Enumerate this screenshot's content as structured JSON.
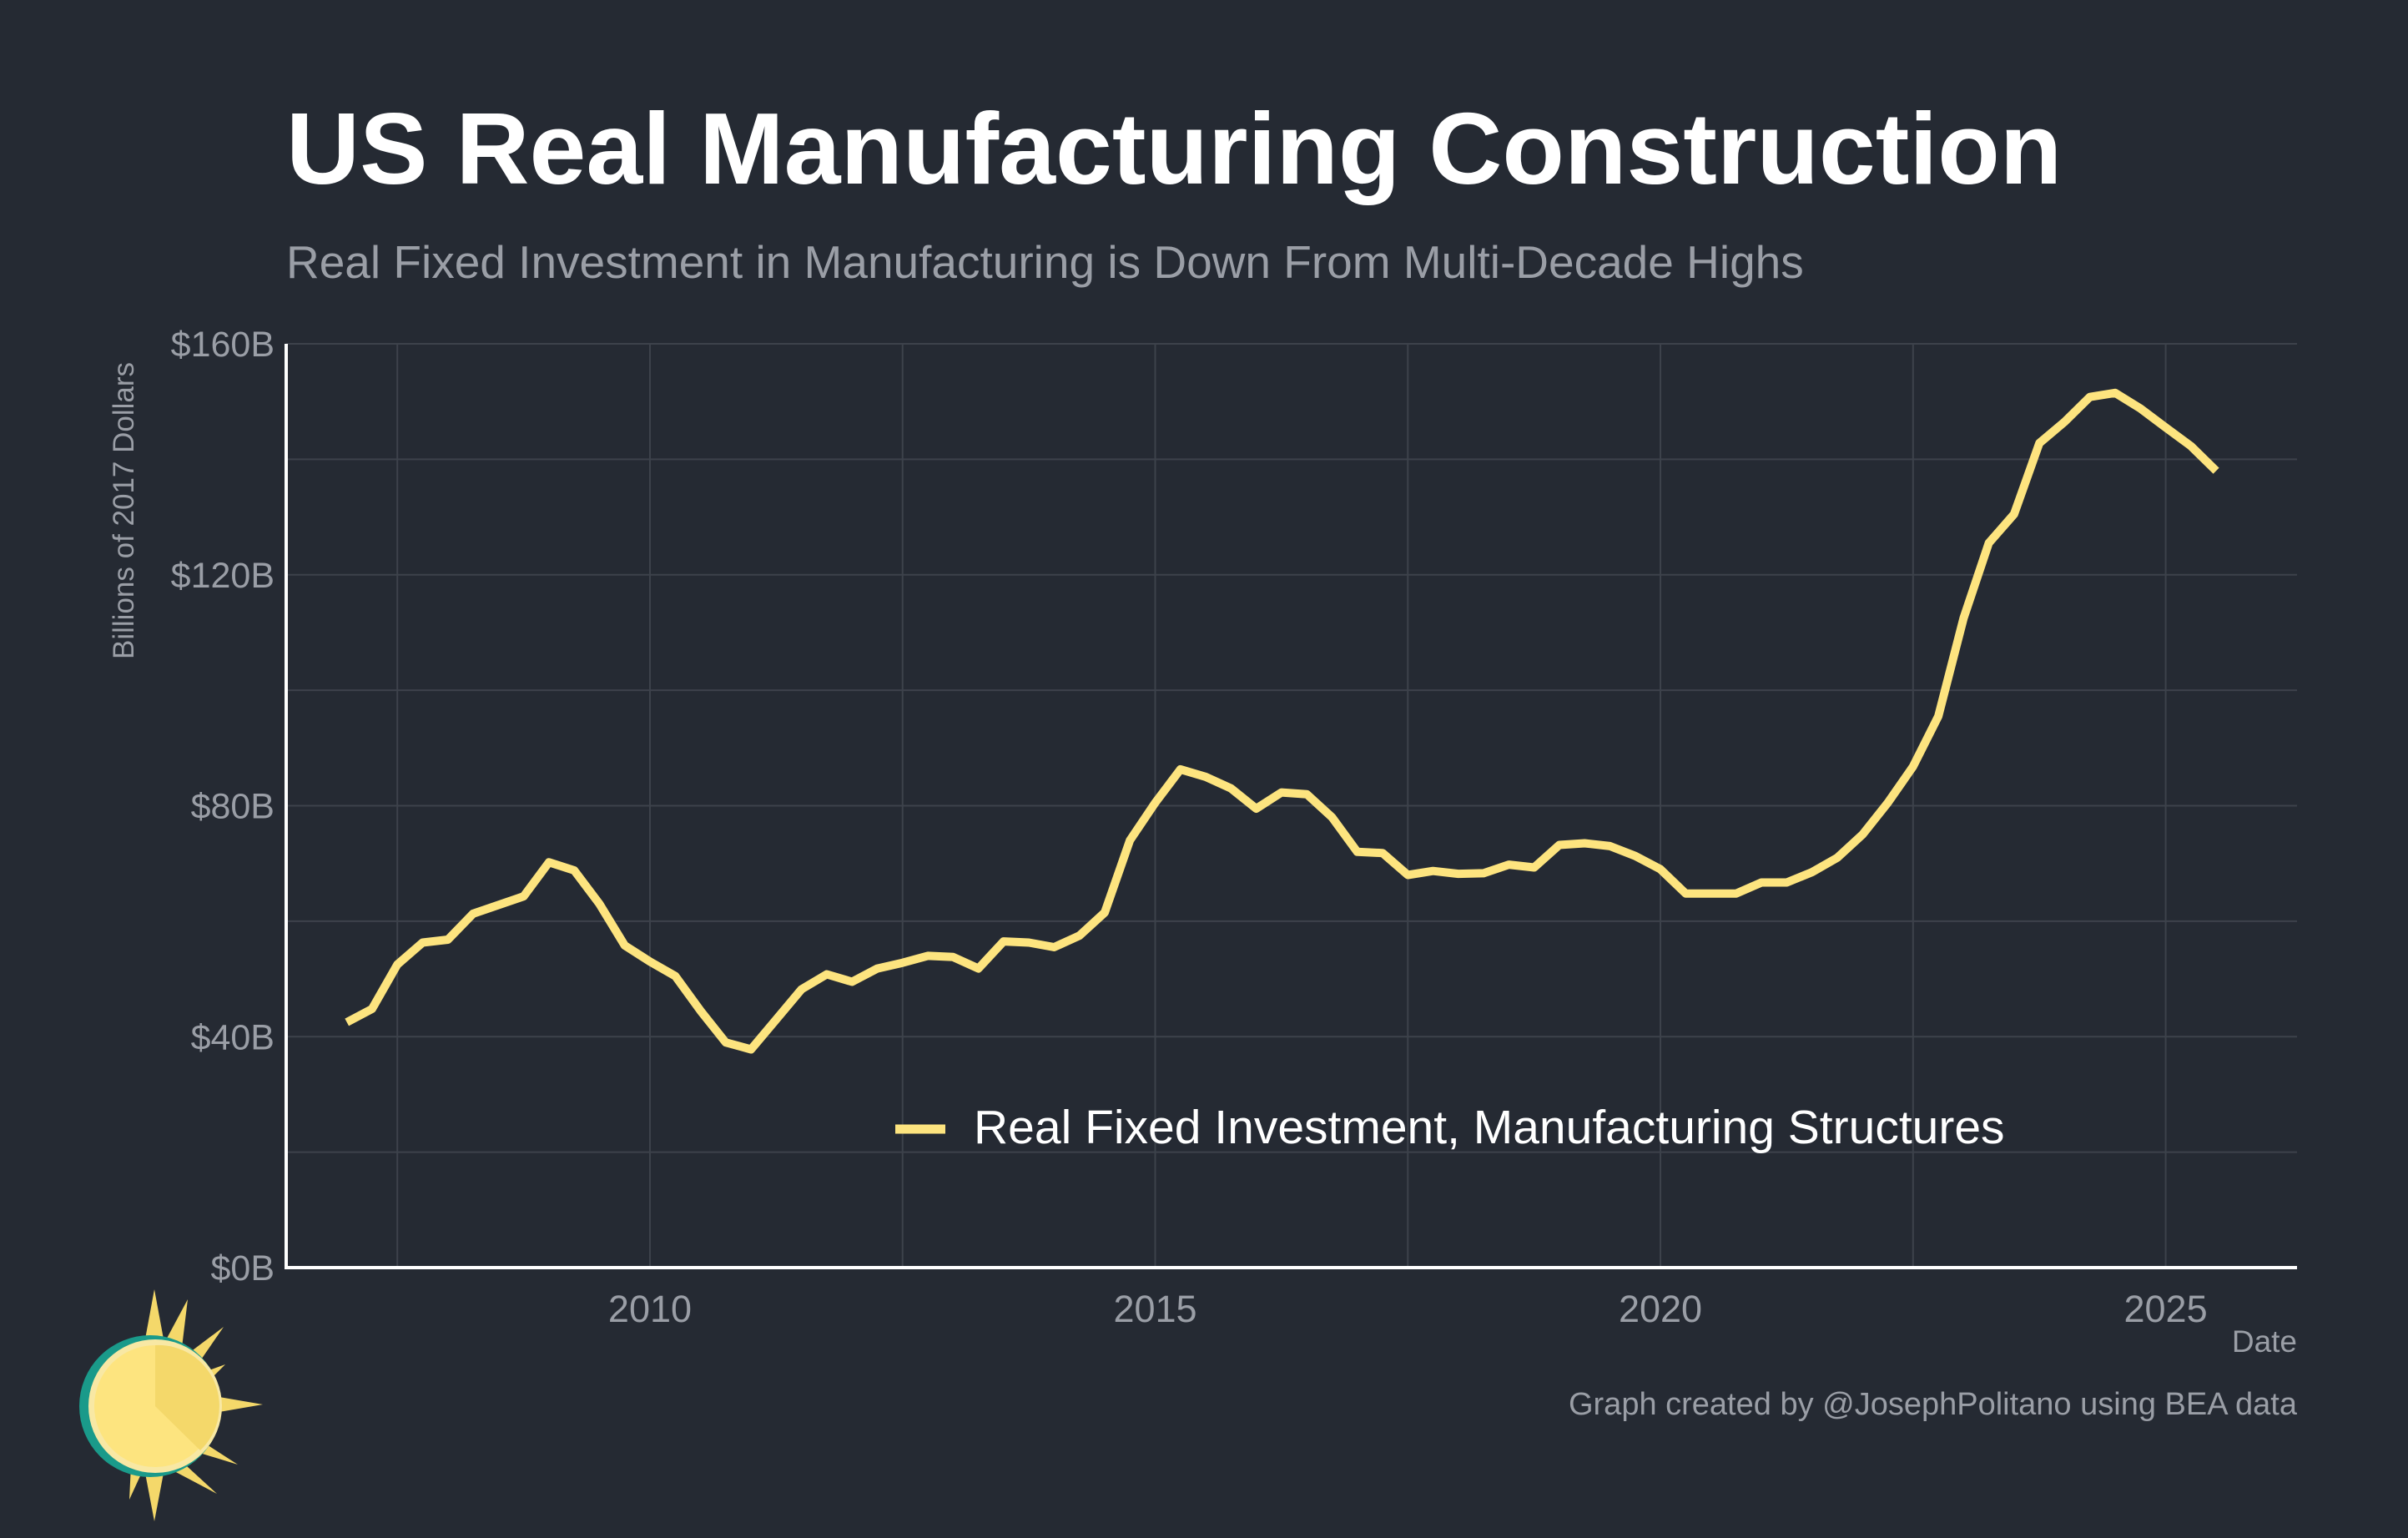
{
  "title": "US Real Manufacturing Construction",
  "subtitle": "Real Fixed Investment in Manufacturing is Down From Multi-Decade Highs",
  "caption": "Graph created by @JosephPolitano using BEA data",
  "colors": {
    "background": "#252a33",
    "line": "#fde47f",
    "grid": "#3d424b",
    "axis": "#ffffff",
    "muted_text": "#9a9ea6"
  },
  "chart_data": {
    "type": "line",
    "xlabel": "Date",
    "ylabel": "Billions of 2017 Dollars",
    "xlim": [
      2006.4,
      2026.3
    ],
    "ylim": [
      0,
      160
    ],
    "x_ticks": [
      2010,
      2015,
      2020,
      2025
    ],
    "x_tick_labels": [
      "2010",
      "2015",
      "2020",
      "2025"
    ],
    "y_ticks": [
      0,
      40,
      80,
      120,
      160
    ],
    "y_tick_labels": [
      "$0B",
      "$40B",
      "$80B",
      "$120B",
      "$160B"
    ],
    "grid": true,
    "legend_position": "bottom-center",
    "series": [
      {
        "name": "Real Fixed Investment, Manufacturing Structures",
        "color": "#fde47f",
        "x": [
          2007.0,
          2007.25,
          2007.5,
          2007.75,
          2008.0,
          2008.25,
          2008.5,
          2008.75,
          2009.0,
          2009.25,
          2009.5,
          2009.75,
          2010.0,
          2010.25,
          2010.5,
          2010.75,
          2011.0,
          2011.25,
          2011.5,
          2011.75,
          2012.0,
          2012.25,
          2012.5,
          2012.75,
          2013.0,
          2013.25,
          2013.5,
          2013.75,
          2014.0,
          2014.25,
          2014.5,
          2014.75,
          2015.0,
          2015.25,
          2015.5,
          2015.75,
          2016.0,
          2016.25,
          2016.5,
          2016.75,
          2017.0,
          2017.25,
          2017.5,
          2017.75,
          2018.0,
          2018.25,
          2018.5,
          2018.75,
          2019.0,
          2019.25,
          2019.5,
          2019.75,
          2020.0,
          2020.25,
          2020.5,
          2020.75,
          2021.0,
          2021.25,
          2021.5,
          2021.75,
          2022.0,
          2022.25,
          2022.5,
          2022.75,
          2023.0,
          2023.25,
          2023.5,
          2023.75,
          2024.0,
          2024.25,
          2024.5,
          2024.75,
          2025.0,
          2025.25,
          2025.5
        ],
        "values": [
          42.5,
          44.8,
          52.5,
          56.3,
          56.8,
          61.3,
          62.8,
          64.3,
          70.2,
          68.8,
          63.0,
          55.8,
          53.0,
          50.5,
          44.5,
          39.0,
          37.8,
          43.0,
          48.2,
          50.8,
          49.5,
          51.8,
          52.8,
          54.0,
          53.8,
          51.8,
          56.5,
          56.3,
          55.5,
          57.5,
          61.5,
          74.0,
          80.5,
          86.3,
          85.0,
          83.0,
          79.5,
          82.3,
          82.0,
          78.0,
          72.0,
          71.8,
          68.0,
          68.7,
          68.2,
          68.3,
          69.8,
          69.3,
          73.2,
          73.5,
          73.0,
          71.3,
          69.0,
          64.8,
          64.8,
          64.8,
          66.7,
          66.7,
          68.5,
          71.0,
          75.0,
          80.5,
          86.8,
          95.5,
          112.5,
          125.5,
          130.5,
          142.8,
          146.5,
          150.8,
          151.5,
          148.8,
          145.5,
          142.3,
          138.0
        ]
      }
    ]
  }
}
